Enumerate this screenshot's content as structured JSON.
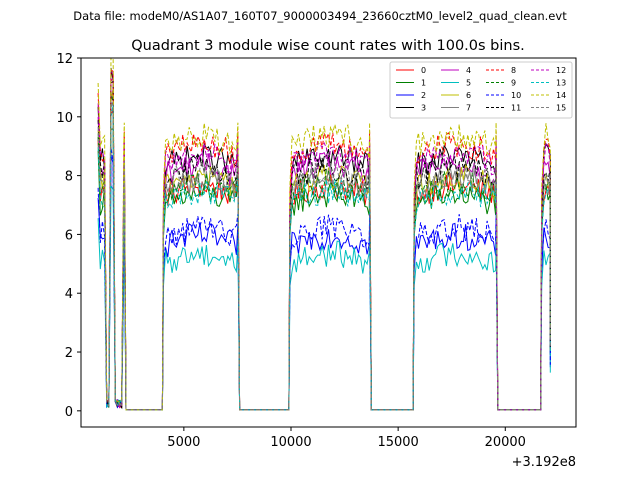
{
  "chart_data": {
    "type": "line",
    "suptitle": "Data file: modeM0/AS1A07_160T07_9000003494_23660cztM0_level2_quad_clean.evt",
    "title": "Quadrant 3 module wise count rates with 100.0s bins.",
    "xlabel": "",
    "ylabel": "",
    "offset_text": "+3.192e8",
    "xlim": [
      200,
      23300
    ],
    "ylim": [
      -0.55,
      12
    ],
    "xticks": [
      5000,
      10000,
      15000,
      20000
    ],
    "xtick_labels": [
      "5000",
      "10000",
      "15000",
      "20000"
    ],
    "yticks": [
      0,
      2,
      4,
      6,
      8,
      10,
      12
    ],
    "ytick_labels": [
      "0",
      "2",
      "4",
      "6",
      "8",
      "10",
      "12"
    ],
    "grid": false,
    "legend_position": "top-right",
    "orbits": [
      {
        "start": 1000,
        "end": 2200,
        "gaps": [
          [
            1350,
            1550
          ],
          [
            1800,
            2100
          ]
        ]
      },
      {
        "start": 4050,
        "end": 7500,
        "gaps": []
      },
      {
        "start": 9950,
        "end": 13650,
        "gaps": []
      },
      {
        "start": 15750,
        "end": 19550,
        "gaps": []
      },
      {
        "start": 21700,
        "end": 22100,
        "gaps": []
      }
    ],
    "series": [
      {
        "name": "0",
        "color": "#ff0000",
        "dash": "solid",
        "level": 7.3
      },
      {
        "name": "1",
        "color": "#008000",
        "dash": "solid",
        "level": 7.0
      },
      {
        "name": "2",
        "color": "#0000ff",
        "dash": "solid",
        "level": 5.6
      },
      {
        "name": "3",
        "color": "#000000",
        "dash": "solid",
        "level": 8.3
      },
      {
        "name": "4",
        "color": "#bf00bf",
        "dash": "solid",
        "level": 8.0
      },
      {
        "name": "5",
        "color": "#00bfbf",
        "dash": "solid",
        "level": 5.0
      },
      {
        "name": "6",
        "color": "#bfbf00",
        "dash": "solid",
        "level": 7.6
      },
      {
        "name": "7",
        "color": "#808080",
        "dash": "solid",
        "level": 7.5
      },
      {
        "name": "8",
        "color": "#ff0000",
        "dash": "dashed",
        "level": 8.7
      },
      {
        "name": "9",
        "color": "#008000",
        "dash": "dashed",
        "level": 7.4
      },
      {
        "name": "10",
        "color": "#0000ff",
        "dash": "dashed",
        "level": 5.9
      },
      {
        "name": "11",
        "color": "#000000",
        "dash": "dashed",
        "level": 7.9
      },
      {
        "name": "12",
        "color": "#bf00bf",
        "dash": "dashed",
        "level": 8.4
      },
      {
        "name": "13",
        "color": "#00bfbf",
        "dash": "dashed",
        "level": 7.1
      },
      {
        "name": "14",
        "color": "#bfbf00",
        "dash": "dashed",
        "level": 9.0
      },
      {
        "name": "15",
        "color": "#808080",
        "dash": "dashed",
        "level": 7.7
      }
    ]
  }
}
